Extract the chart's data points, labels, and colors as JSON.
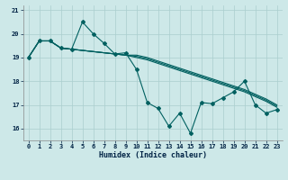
{
  "xlabel": "Humidex (Indice chaleur)",
  "bg_color": "#cde8e8",
  "grid_color": "#aacece",
  "line_color": "#006060",
  "xlim": [
    -0.5,
    23.5
  ],
  "ylim": [
    15.5,
    21.2
  ],
  "xticks": [
    0,
    1,
    2,
    3,
    4,
    5,
    6,
    7,
    8,
    9,
    10,
    11,
    12,
    13,
    14,
    15,
    16,
    17,
    18,
    19,
    20,
    21,
    22,
    23
  ],
  "yticks": [
    16,
    17,
    18,
    19,
    20,
    21
  ],
  "smooth1": [
    19.0,
    19.7,
    19.7,
    19.4,
    19.35,
    19.3,
    19.25,
    19.2,
    19.15,
    19.1,
    19.0,
    18.9,
    18.75,
    18.6,
    18.45,
    18.3,
    18.15,
    18.0,
    17.85,
    17.7,
    17.55,
    17.35,
    17.15,
    16.9
  ],
  "smooth2": [
    19.0,
    19.7,
    19.7,
    19.4,
    19.35,
    19.3,
    19.25,
    19.2,
    19.15,
    19.1,
    19.05,
    18.95,
    18.8,
    18.65,
    18.5,
    18.35,
    18.2,
    18.05,
    17.9,
    17.75,
    17.6,
    17.4,
    17.2,
    16.95
  ],
  "smooth3": [
    19.0,
    19.7,
    19.7,
    19.4,
    19.35,
    19.3,
    19.25,
    19.2,
    19.15,
    19.1,
    19.1,
    19.0,
    18.85,
    18.7,
    18.55,
    18.4,
    18.25,
    18.1,
    17.95,
    17.8,
    17.65,
    17.45,
    17.25,
    17.0
  ],
  "jagged": [
    19.0,
    19.7,
    19.7,
    19.4,
    19.35,
    20.5,
    20.0,
    19.6,
    19.15,
    19.2,
    18.5,
    17.1,
    16.85,
    16.1,
    16.65,
    15.8,
    17.1,
    17.05,
    17.3,
    17.55,
    18.0,
    17.0,
    16.65,
    16.8
  ]
}
